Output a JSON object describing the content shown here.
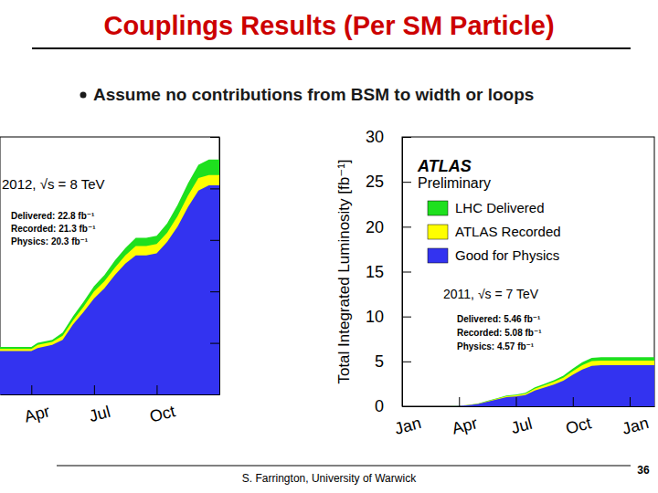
{
  "slide": {
    "title": "Couplings Results (Per SM Particle)",
    "bullets": [
      "Assume no contributions from BSM to width or loops"
    ],
    "footer": "S. Farrington, University of Warwick",
    "page": 36
  },
  "chart_data": [
    {
      "type": "area",
      "stacked": false,
      "annotations": [
        "2012, √s = 8 TeV",
        "Delivered: 22.8 fb⁻¹",
        "Recorded: 21.3 fb⁻¹",
        "Physics: 20.3 fb⁻¹"
      ],
      "x": [
        1.5,
        3.0,
        3.3,
        4.0,
        4.5,
        5.0,
        5.5,
        6.0,
        6.5,
        7.0,
        7.5,
        8.0,
        8.5,
        9.0,
        9.5,
        10.0,
        10.5,
        11.0,
        11.5,
        12.0
      ],
      "series": [
        {
          "color": "#1ee01e",
          "values": [
            4.6,
            4.6,
            5.0,
            5.3,
            6.0,
            7.6,
            9.0,
            10.5,
            11.6,
            13.0,
            14.2,
            15.2,
            15.2,
            15.4,
            16.6,
            18.4,
            20.5,
            22.3,
            22.8,
            22.8
          ]
        },
        {
          "color": "#ffff00",
          "values": [
            4.4,
            4.4,
            4.8,
            5.1,
            5.7,
            7.2,
            8.5,
            10.0,
            11.0,
            12.3,
            13.5,
            14.4,
            14.4,
            14.6,
            15.7,
            17.3,
            19.3,
            21.0,
            21.3,
            21.3
          ]
        },
        {
          "color": "#3333f0",
          "values": [
            4.2,
            4.2,
            4.5,
            4.8,
            5.3,
            6.8,
            8.0,
            9.3,
            10.3,
            11.6,
            12.7,
            13.5,
            13.5,
            13.7,
            14.8,
            16.3,
            18.2,
            19.8,
            20.3,
            20.3
          ]
        }
      ],
      "xlim": [
        1.5,
        12
      ],
      "xticks": [
        {
          "value": 3,
          "label": "Apr"
        },
        {
          "value": 6,
          "label": "Jul"
        },
        {
          "value": 9,
          "label": "Oct"
        }
      ],
      "ylim": [
        0,
        25
      ],
      "yticks": [
        0,
        5,
        10,
        15,
        20,
        25
      ],
      "tick_labels": "x"
    },
    {
      "type": "area",
      "stacked": false,
      "title": "ATLAS",
      "subtitle": "Preliminary",
      "ylabel": "Total Integrated Luminosity [fb⁻¹]",
      "annotations": [
        "2011, √s = 7 TeV",
        "Delivered: 5.46 fb⁻¹",
        "Recorded: 5.08 fb⁻¹",
        "Physics: 4.57 fb⁻¹"
      ],
      "legend": "upper left",
      "x": [
        0,
        2.5,
        3,
        3.5,
        4,
        4.5,
        5,
        5.5,
        6,
        6.5,
        7,
        7.5,
        8,
        8.5,
        9,
        9.5,
        10,
        10.5,
        11,
        12,
        13.3
      ],
      "series": [
        {
          "name": "LHC Delivered",
          "color": "#1ee01e",
          "values": [
            0,
            0,
            0.05,
            0.15,
            0.3,
            0.6,
            0.9,
            1.2,
            1.3,
            1.5,
            2.1,
            2.5,
            2.9,
            3.4,
            4.2,
            4.9,
            5.4,
            5.46,
            5.46,
            5.46,
            5.46
          ]
        },
        {
          "name": "ATLAS Recorded",
          "color": "#ffff00",
          "values": [
            0,
            0,
            0.05,
            0.14,
            0.28,
            0.56,
            0.85,
            1.13,
            1.22,
            1.4,
            1.97,
            2.34,
            2.71,
            3.18,
            3.92,
            4.58,
            5.03,
            5.08,
            5.08,
            5.08,
            5.08
          ]
        },
        {
          "name": "Good for Physics",
          "color": "#3333f0",
          "values": [
            0,
            0,
            0.04,
            0.12,
            0.25,
            0.5,
            0.76,
            1.01,
            1.09,
            1.25,
            1.76,
            2.09,
            2.42,
            2.84,
            3.5,
            4.09,
            4.5,
            4.57,
            4.57,
            4.57,
            4.57
          ]
        }
      ],
      "xlim": [
        0,
        13.3
      ],
      "xticks": [
        {
          "value": 0,
          "label": "Jan"
        },
        {
          "value": 3,
          "label": "Apr"
        },
        {
          "value": 6,
          "label": "Jul"
        },
        {
          "value": 9,
          "label": "Oct"
        },
        {
          "value": 12,
          "label": "Jan"
        }
      ],
      "ylim": [
        0,
        30
      ],
      "yticks": [
        0,
        5,
        10,
        15,
        20,
        25,
        30
      ]
    }
  ]
}
